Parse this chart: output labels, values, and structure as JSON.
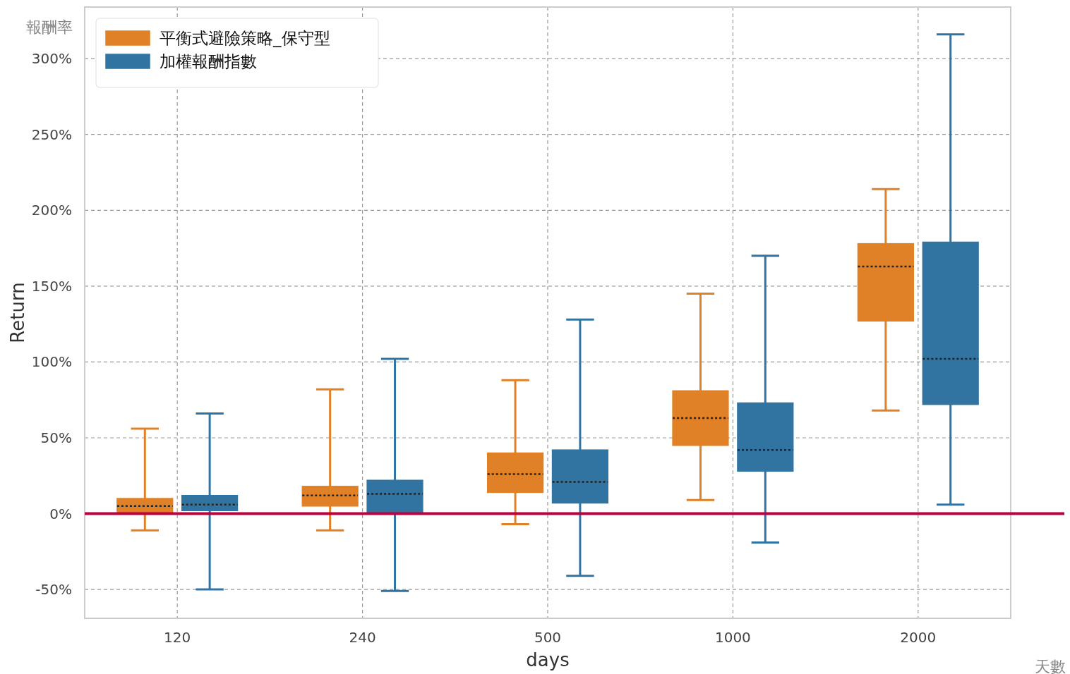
{
  "chart_data": {
    "type": "box",
    "xlabel": "days",
    "ylabel": "Return",
    "categories": [
      "120",
      "240",
      "500",
      "1000",
      "2000"
    ],
    "series": [
      {
        "name": "平衡式避險策略_保守型",
        "color": "#e08127",
        "boxes": [
          {
            "low": -11,
            "q1": 1,
            "median": 5,
            "q3": 10,
            "high": 56
          },
          {
            "low": -11,
            "q1": 5,
            "median": 12,
            "q3": 18,
            "high": 82
          },
          {
            "low": -7,
            "q1": 14,
            "median": 26,
            "q3": 40,
            "high": 88
          },
          {
            "low": 9,
            "q1": 45,
            "median": 63,
            "q3": 81,
            "high": 145
          },
          {
            "low": 68,
            "q1": 127,
            "median": 163,
            "q3": 178,
            "high": 214
          }
        ]
      },
      {
        "name": "加權報酬指數",
        "color": "#3274a1",
        "boxes": [
          {
            "low": -50,
            "q1": 2,
            "median": 6,
            "q3": 12,
            "high": 66
          },
          {
            "low": -51,
            "q1": 0,
            "median": 13,
            "q3": 22,
            "high": 102
          },
          {
            "low": -41,
            "q1": 7,
            "median": 21,
            "q3": 42,
            "high": 128
          },
          {
            "low": -19,
            "q1": 28,
            "median": 42,
            "q3": 73,
            "high": 170
          },
          {
            "low": 6,
            "q1": 72,
            "median": 102,
            "q3": 179,
            "high": 316
          }
        ]
      }
    ],
    "ylim": [
      -69,
      334
    ],
    "yticks": [
      {
        "value": -50,
        "label": "-50%"
      },
      {
        "value": 0,
        "label": "0%"
      },
      {
        "value": 50,
        "label": "50%"
      },
      {
        "value": 100,
        "label": "100%"
      },
      {
        "value": 150,
        "label": "150%"
      },
      {
        "value": 200,
        "label": "200%"
      },
      {
        "value": 250,
        "label": "250%"
      },
      {
        "value": 300,
        "label": "300%"
      }
    ],
    "ref_lines": [
      {
        "axis": "y",
        "value": 0,
        "color": "#c0003c"
      }
    ],
    "grid": true,
    "legend": "top left",
    "annotations": [
      "報酬率",
      "天數"
    ]
  }
}
